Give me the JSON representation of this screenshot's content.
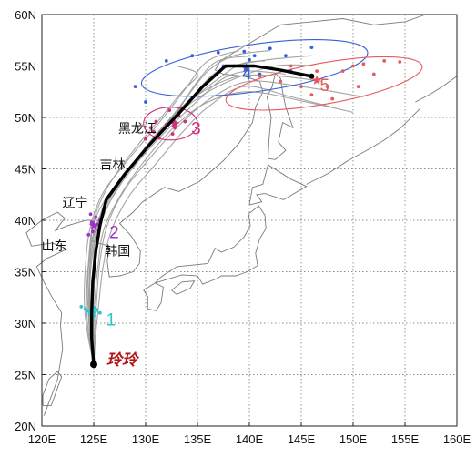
{
  "map": {
    "lon_range": [
      120,
      160
    ],
    "lat_range": [
      20,
      60
    ],
    "x_ticks": [
      {
        "value": 120,
        "label": "120E"
      },
      {
        "value": 125,
        "label": "125E"
      },
      {
        "value": 130,
        "label": "130E"
      },
      {
        "value": 135,
        "label": "135E"
      },
      {
        "value": 140,
        "label": "140E"
      },
      {
        "value": 145,
        "label": "145E"
      },
      {
        "value": 150,
        "label": "150E"
      },
      {
        "value": 155,
        "label": "155E"
      },
      {
        "value": 160,
        "label": "160E"
      }
    ],
    "y_ticks": [
      {
        "value": 20,
        "label": "20N"
      },
      {
        "value": 25,
        "label": "25N"
      },
      {
        "value": 30,
        "label": "30N"
      },
      {
        "value": 35,
        "label": "35N"
      },
      {
        "value": 40,
        "label": "40N"
      },
      {
        "value": 45,
        "label": "45N"
      },
      {
        "value": 50,
        "label": "50N"
      },
      {
        "value": 55,
        "label": "55N"
      },
      {
        "value": 60,
        "label": "60N"
      }
    ],
    "grid": true,
    "region_labels": [
      {
        "text": "黑龙江",
        "lon": 129.2,
        "lat": 48.5
      },
      {
        "text": "吉林",
        "lon": 126.8,
        "lat": 45.0
      },
      {
        "text": "辽宁",
        "lon": 123.2,
        "lat": 41.3
      },
      {
        "text": "山东",
        "lon": 121.2,
        "lat": 37.1
      },
      {
        "text": "韩国",
        "lon": 127.3,
        "lat": 36.6
      }
    ],
    "typhoon_name": "玲玲",
    "colors": {
      "ensemble": "#9a9a9a",
      "mean_track": "#000000",
      "typhoon_name": "#b01515",
      "step1": "#2ec4cf",
      "step2": "#a030c8",
      "step3": "#d0307a",
      "step4": "#3560d8",
      "step5": "#e85a5a"
    }
  },
  "chart_data": {
    "type": "map-track",
    "mean_track": [
      {
        "lon": 125.0,
        "lat": 26.0
      },
      {
        "lon": 124.8,
        "lat": 28.5
      },
      {
        "lon": 124.8,
        "lat": 31.0
      },
      {
        "lon": 124.9,
        "lat": 34.0
      },
      {
        "lon": 125.2,
        "lat": 37.0
      },
      {
        "lon": 125.6,
        "lat": 39.5
      },
      {
        "lon": 126.2,
        "lat": 42.0
      },
      {
        "lon": 128.0,
        "lat": 44.5
      },
      {
        "lon": 130.5,
        "lat": 47.5
      },
      {
        "lon": 133.3,
        "lat": 50.5
      },
      {
        "lon": 135.5,
        "lat": 53.0
      },
      {
        "lon": 137.7,
        "lat": 55.0
      },
      {
        "lon": 140.5,
        "lat": 55.0
      },
      {
        "lon": 143.0,
        "lat": 54.6
      },
      {
        "lon": 146.0,
        "lat": 54.0
      }
    ],
    "ensemble_tracks": [
      [
        [
          125.0,
          26.0
        ],
        [
          124.5,
          29.0
        ],
        [
          124.3,
          32.0
        ],
        [
          124.5,
          36.0
        ],
        [
          125.0,
          40.0
        ],
        [
          126.5,
          43.5
        ],
        [
          129.0,
          47.0
        ],
        [
          131.5,
          50.0
        ],
        [
          133.5,
          52.5
        ],
        [
          135.0,
          54.2
        ],
        [
          133.0,
          55.0
        ]
      ],
      [
        [
          125.0,
          26.0
        ],
        [
          124.6,
          29.0
        ],
        [
          124.5,
          32.0
        ],
        [
          124.7,
          36.0
        ],
        [
          125.3,
          39.5
        ],
        [
          127.0,
          43.0
        ],
        [
          129.5,
          46.5
        ],
        [
          132.0,
          49.5
        ],
        [
          134.5,
          52.0
        ],
        [
          137.0,
          54.5
        ],
        [
          141.0,
          55.5
        ],
        [
          146.0,
          56.0
        ]
      ],
      [
        [
          125.0,
          26.0
        ],
        [
          124.9,
          29.0
        ],
        [
          125.0,
          32.5
        ],
        [
          125.2,
          36.5
        ],
        [
          125.8,
          40.0
        ],
        [
          127.5,
          43.5
        ],
        [
          130.0,
          47.0
        ],
        [
          132.5,
          50.0
        ],
        [
          135.5,
          52.5
        ],
        [
          139.0,
          54.0
        ],
        [
          143.0,
          54.0
        ],
        [
          147.0,
          53.5
        ]
      ],
      [
        [
          125.0,
          26.0
        ],
        [
          125.1,
          29.0
        ],
        [
          125.3,
          32.5
        ],
        [
          125.6,
          36.0
        ],
        [
          126.3,
          39.5
        ],
        [
          128.0,
          43.0
        ],
        [
          130.8,
          46.5
        ],
        [
          133.5,
          49.5
        ],
        [
          136.5,
          52.0
        ],
        [
          140.0,
          53.5
        ],
        [
          145.0,
          53.0
        ],
        [
          151.0,
          52.0
        ]
      ],
      [
        [
          125.0,
          26.0
        ],
        [
          124.4,
          29.0
        ],
        [
          124.1,
          32.0
        ],
        [
          124.2,
          35.5
        ],
        [
          124.6,
          39.0
        ],
        [
          125.8,
          42.5
        ],
        [
          128.0,
          45.5
        ],
        [
          130.5,
          48.5
        ],
        [
          132.5,
          51.0
        ],
        [
          134.0,
          53.0
        ],
        [
          136.0,
          55.5
        ],
        [
          139.0,
          56.5
        ]
      ],
      [
        [
          125.0,
          26.0
        ],
        [
          125.2,
          29.0
        ],
        [
          125.5,
          32.0
        ],
        [
          125.9,
          35.5
        ],
        [
          126.7,
          39.0
        ],
        [
          128.5,
          42.5
        ],
        [
          131.0,
          45.5
        ],
        [
          133.5,
          48.5
        ],
        [
          136.0,
          51.0
        ],
        [
          139.5,
          53.0
        ],
        [
          144.0,
          52.0
        ],
        [
          148.0,
          51.0
        ]
      ],
      [
        [
          125.0,
          26.0
        ],
        [
          124.7,
          29.0
        ],
        [
          124.6,
          32.5
        ],
        [
          124.8,
          36.0
        ],
        [
          125.5,
          39.8
        ],
        [
          127.2,
          43.2
        ],
        [
          129.8,
          46.8
        ],
        [
          132.3,
          49.8
        ],
        [
          134.0,
          52.0
        ],
        [
          136.0,
          54.5
        ],
        [
          138.5,
          56.0
        ],
        [
          142.0,
          56.5
        ]
      ],
      [
        [
          125.0,
          26.0
        ],
        [
          124.8,
          29.0
        ],
        [
          124.7,
          32.0
        ],
        [
          124.9,
          35.0
        ],
        [
          125.2,
          38.5
        ],
        [
          126.2,
          42.0
        ],
        [
          128.5,
          45.0
        ],
        [
          131.0,
          48.0
        ],
        [
          133.0,
          50.5
        ],
        [
          135.0,
          53.5
        ],
        [
          137.0,
          55.5
        ],
        [
          140.5,
          56.0
        ]
      ],
      [
        [
          125.0,
          26.0
        ],
        [
          125.0,
          29.0
        ],
        [
          125.1,
          32.0
        ],
        [
          125.4,
          35.5
        ],
        [
          126.0,
          39.2
        ],
        [
          127.8,
          42.8
        ],
        [
          130.3,
          46.3
        ],
        [
          133.0,
          49.3
        ],
        [
          136.0,
          51.5
        ],
        [
          140.0,
          52.5
        ],
        [
          145.5,
          51.5
        ],
        [
          150.0,
          50.5
        ]
      ],
      [
        [
          125.0,
          26.0
        ],
        [
          124.6,
          29.5
        ],
        [
          124.4,
          33.0
        ],
        [
          124.6,
          36.5
        ],
        [
          125.1,
          40.0
        ],
        [
          126.8,
          43.0
        ],
        [
          129.3,
          46.0
        ],
        [
          131.8,
          49.0
        ],
        [
          134.5,
          51.5
        ],
        [
          138.0,
          53.5
        ],
        [
          142.5,
          55.0
        ],
        [
          146.5,
          55.0
        ]
      ],
      [
        [
          125.0,
          26.0
        ],
        [
          124.9,
          29.5
        ],
        [
          124.9,
          33.0
        ],
        [
          125.1,
          36.5
        ],
        [
          125.7,
          40.0
        ],
        [
          127.6,
          43.5
        ],
        [
          130.2,
          46.8
        ],
        [
          132.8,
          49.5
        ],
        [
          135.2,
          51.8
        ],
        [
          137.5,
          53.8
        ],
        [
          140.0,
          54.5
        ],
        [
          143.5,
          54.2
        ]
      ],
      [
        [
          125.0,
          26.0
        ],
        [
          124.8,
          29.0
        ],
        [
          124.6,
          31.5
        ],
        [
          124.6,
          35.0
        ],
        [
          125.0,
          38.8
        ],
        [
          126.5,
          42.2
        ],
        [
          128.8,
          45.4
        ],
        [
          131.2,
          48.4
        ],
        [
          133.8,
          51.2
        ],
        [
          136.8,
          53.6
        ],
        [
          139.2,
          55.2
        ],
        [
          141.5,
          55.5
        ]
      ]
    ],
    "forecast_steps": [
      {
        "label": "1",
        "color_key": "step1",
        "center": {
          "lon": 124.9,
          "lat": 31.0
        },
        "label_pos": {
          "lon": 126.2,
          "lat": 30.4
        },
        "points": [
          [
            123.8,
            31.6
          ],
          [
            124.4,
            31.2
          ],
          [
            124.9,
            30.6
          ],
          [
            125.3,
            31.3
          ],
          [
            125.6,
            31.0
          ],
          [
            124.6,
            30.9
          ],
          [
            125.1,
            31.5
          ],
          [
            124.2,
            31.4
          ]
        ]
      },
      {
        "label": "2",
        "color_key": "step2",
        "center": {
          "lon": 125.0,
          "lat": 39.5
        },
        "label_pos": {
          "lon": 126.5,
          "lat": 38.9
        },
        "points": [
          [
            124.5,
            38.6
          ],
          [
            124.8,
            39.8
          ],
          [
            125.2,
            40.3
          ],
          [
            125.5,
            39.0
          ],
          [
            124.7,
            40.6
          ],
          [
            125.6,
            40.0
          ],
          [
            124.9,
            38.9
          ],
          [
            125.3,
            39.6
          ]
        ]
      },
      {
        "label": "3",
        "color_key": "step3",
        "center": {
          "lon": 132.8,
          "lat": 49.4
        },
        "label_pos": {
          "lon": 134.4,
          "lat": 49.0
        },
        "points": [
          [
            130.0,
            47.9
          ],
          [
            130.8,
            48.6
          ],
          [
            131.3,
            48.0
          ],
          [
            132.0,
            49.3
          ],
          [
            132.8,
            49.0
          ],
          [
            133.2,
            50.2
          ],
          [
            133.8,
            49.6
          ],
          [
            132.3,
            50.7
          ],
          [
            131.0,
            49.6
          ],
          [
            133.5,
            50.8
          ],
          [
            130.5,
            49.0
          ],
          [
            132.6,
            48.4
          ]
        ]
      },
      {
        "label": "4",
        "color_key": "step4",
        "center": {
          "lon": 139.7,
          "lat": 54.8
        },
        "label_pos": {
          "lon": 139.3,
          "lat": 54.3
        },
        "points": [
          [
            129.0,
            53.0
          ],
          [
            130.0,
            51.5
          ],
          [
            132.0,
            55.5
          ],
          [
            134.5,
            56.0
          ],
          [
            137.0,
            56.3
          ],
          [
            138.5,
            55.0
          ],
          [
            139.5,
            56.4
          ],
          [
            140.5,
            56.0
          ],
          [
            141.0,
            54.2
          ],
          [
            142.0,
            56.7
          ],
          [
            143.5,
            56.0
          ],
          [
            144.0,
            54.5
          ],
          [
            146.0,
            56.8
          ],
          [
            140.0,
            55.6
          ],
          [
            137.5,
            55.0
          ]
        ]
      },
      {
        "label": "5",
        "color_key": "step5",
        "center": {
          "lon": 146.5,
          "lat": 53.6
        },
        "label_pos": {
          "lon": 146.8,
          "lat": 53.2
        },
        "points": [
          [
            141.0,
            54.0
          ],
          [
            143.0,
            53.5
          ],
          [
            144.0,
            55.0
          ],
          [
            145.0,
            53.0
          ],
          [
            146.5,
            54.5
          ],
          [
            147.5,
            53.0
          ],
          [
            149.0,
            54.5
          ],
          [
            150.0,
            55.0
          ],
          [
            151.0,
            55.2
          ],
          [
            152.0,
            54.2
          ],
          [
            153.0,
            55.5
          ],
          [
            154.5,
            55.4
          ],
          [
            148.0,
            51.8
          ],
          [
            146.0,
            52.2
          ],
          [
            150.5,
            53.0
          ]
        ]
      }
    ],
    "uncertainty_ellipses": [
      {
        "color_key": "step4",
        "center": {
          "lon": 140.5,
          "lat": 54.8
        },
        "rx_deg": 11.0,
        "ry_deg": 2.3,
        "angle_deg": -8
      },
      {
        "color_key": "step5",
        "center": {
          "lon": 147.2,
          "lat": 53.3
        },
        "rx_deg": 9.6,
        "ry_deg": 2.0,
        "angle_deg": -10
      },
      {
        "color_key": "step3",
        "center": {
          "lon": 132.4,
          "lat": 49.4
        },
        "rx_deg": 2.6,
        "ry_deg": 1.6,
        "angle_deg": 0
      }
    ],
    "start_point": {
      "lon": 125.0,
      "lat": 26.0
    }
  }
}
